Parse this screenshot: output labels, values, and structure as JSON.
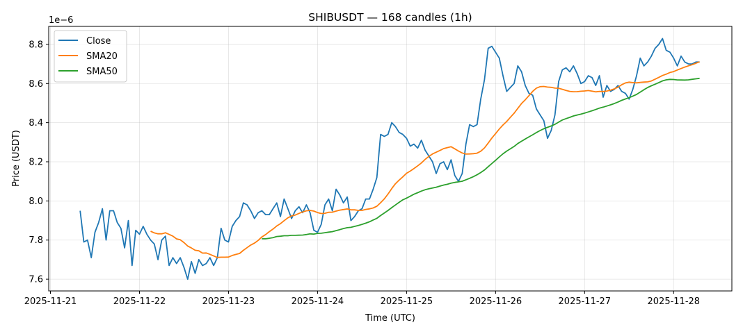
{
  "chart_data": {
    "type": "line",
    "title": "SHIBUSDT — 168 candles (1h)",
    "xlabel": "Time (UTC)",
    "ylabel": "Price (USDT)",
    "y_scale_label": "1e−6",
    "y_unit_multiplier": 1e-06,
    "start_time": "2025-11-21 08:00",
    "interval_hours": 1,
    "xlim_hours_from_2025-11-21": [
      -0.47,
      183.7
    ],
    "ylim": [
      7.54,
      8.892
    ],
    "grid": true,
    "legend_position": "top-left",
    "x_ticks": [
      {
        "label": "2025-11-21",
        "hour": 0
      },
      {
        "label": "2025-11-22",
        "hour": 24
      },
      {
        "label": "2025-11-23",
        "hour": 48
      },
      {
        "label": "2025-11-24",
        "hour": 72
      },
      {
        "label": "2025-11-25",
        "hour": 96
      },
      {
        "label": "2025-11-26",
        "hour": 120
      },
      {
        "label": "2025-11-27",
        "hour": 144
      },
      {
        "label": "2025-11-28",
        "hour": 168
      }
    ],
    "y_ticks": [
      {
        "label": "7.6",
        "value": 7.6
      },
      {
        "label": "7.8",
        "value": 7.8
      },
      {
        "label": "8.0",
        "value": 8.0
      },
      {
        "label": "8.2",
        "value": 8.2
      },
      {
        "label": "8.4",
        "value": 8.4
      },
      {
        "label": "8.6",
        "value": 8.6
      },
      {
        "label": "8.8",
        "value": 8.8
      }
    ],
    "series": [
      {
        "name": "Close",
        "color": "#1f77b4",
        "values": [
          7.95,
          7.79,
          7.8,
          7.71,
          7.84,
          7.89,
          7.96,
          7.8,
          7.95,
          7.95,
          7.89,
          7.86,
          7.76,
          7.9,
          7.67,
          7.85,
          7.83,
          7.87,
          7.83,
          7.8,
          7.78,
          7.7,
          7.8,
          7.82,
          7.67,
          7.71,
          7.68,
          7.71,
          7.66,
          7.6,
          7.69,
          7.63,
          7.7,
          7.67,
          7.68,
          7.71,
          7.67,
          7.71,
          7.86,
          7.8,
          7.79,
          7.87,
          7.9,
          7.92,
          7.99,
          7.98,
          7.95,
          7.91,
          7.94,
          7.95,
          7.93,
          7.93,
          7.96,
          7.99,
          7.92,
          8.01,
          7.96,
          7.91,
          7.95,
          7.97,
          7.94,
          7.98,
          7.94,
          7.85,
          7.84,
          7.88,
          7.98,
          8.01,
          7.95,
          8.06,
          8.03,
          7.99,
          8.02,
          7.9,
          7.92,
          7.95,
          7.96,
          8.01,
          8.01,
          8.06,
          8.12,
          8.34,
          8.33,
          8.34,
          8.4,
          8.38,
          8.35,
          8.34,
          8.32,
          8.28,
          8.29,
          8.27,
          8.31,
          8.26,
          8.23,
          8.2,
          8.14,
          8.19,
          8.2,
          8.16,
          8.21,
          8.13,
          8.1,
          8.14,
          8.29,
          8.39,
          8.38,
          8.39,
          8.52,
          8.62,
          8.78,
          8.79,
          8.76,
          8.73,
          8.64,
          8.56,
          8.58,
          8.6,
          8.69,
          8.66,
          8.59,
          8.55,
          8.54,
          8.47,
          8.44,
          8.41,
          8.32,
          8.36,
          8.44,
          8.61,
          8.67,
          8.68,
          8.66,
          8.69,
          8.65,
          8.6,
          8.61,
          8.64,
          8.63,
          8.59,
          8.64,
          8.53,
          8.59,
          8.56,
          8.57,
          8.59,
          8.56,
          8.55,
          8.52,
          8.57,
          8.64,
          8.73,
          8.69,
          8.71,
          8.74,
          8.78,
          8.8,
          8.83,
          8.77,
          8.76,
          8.73,
          8.69,
          8.74,
          8.71,
          8.7,
          8.7,
          8.71,
          8.71
        ]
      },
      {
        "name": "SMA20",
        "color": "#ff7f0e",
        "window": 20
      },
      {
        "name": "SMA50",
        "color": "#2ca02c",
        "window": 50
      }
    ]
  }
}
